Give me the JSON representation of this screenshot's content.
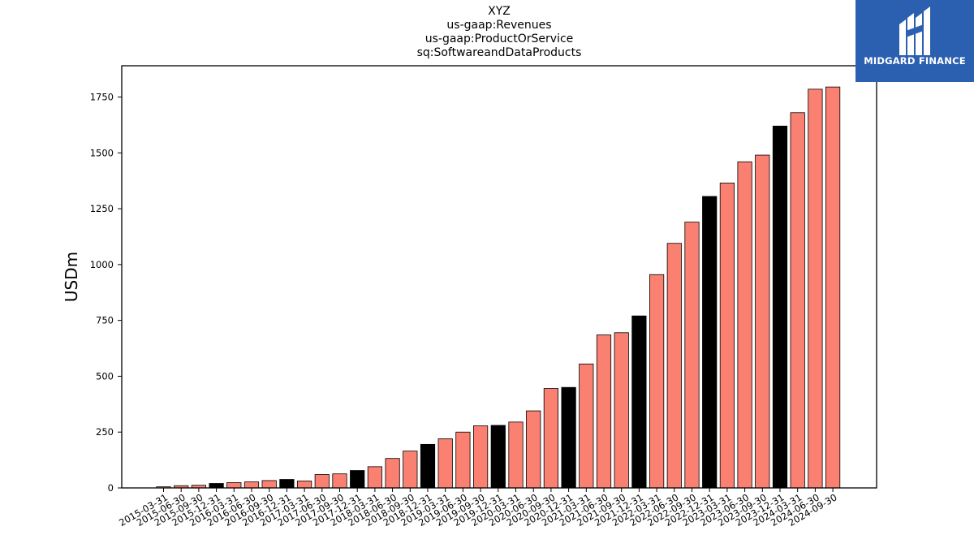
{
  "brand": {
    "logo_text": "MIDGARD FINANCE",
    "logo_bg": "#2b5fb0",
    "logo_fg": "#ffffff"
  },
  "chart_data": {
    "type": "bar",
    "title_lines": [
      "XYZ",
      "us-gaap:Revenues",
      "us-gaap:ProductOrService",
      "sq:SoftwareandDataProducts"
    ],
    "xlabel": "",
    "ylabel": "USDm",
    "ylim": [
      0,
      1890
    ],
    "yticks": [
      0,
      250,
      500,
      750,
      1000,
      1250,
      1500,
      1750
    ],
    "colors": {
      "quarter": "#fa8072",
      "year_end": "#000000",
      "edge": "#000000"
    },
    "categories": [
      "2015-03-31",
      "2015-06-30",
      "2015-09-30",
      "2015-12-31",
      "2016-03-31",
      "2016-06-30",
      "2016-09-30",
      "2016-12-31",
      "2017-03-31",
      "2017-06-30",
      "2017-09-30",
      "2017-12-31",
      "2018-03-31",
      "2018-06-30",
      "2018-09-30",
      "2018-12-31",
      "2019-03-31",
      "2019-06-30",
      "2019-09-30",
      "2019-12-31",
      "2020-03-31",
      "2020-06-30",
      "2020-09-30",
      "2020-12-31",
      "2021-03-31",
      "2021-06-30",
      "2021-09-30",
      "2021-12-31",
      "2022-03-31",
      "2022-06-30",
      "2022-09-30",
      "2022-12-31",
      "2023-03-31",
      "2023-06-30",
      "2023-09-30",
      "2023-12-31",
      "2024-03-31",
      "2024-06-30",
      "2024-09-30"
    ],
    "values": [
      5,
      10,
      12,
      20,
      24,
      27,
      33,
      38,
      31,
      60,
      63,
      78,
      95,
      132,
      165,
      195,
      220,
      250,
      278,
      280,
      295,
      345,
      445,
      450,
      555,
      685,
      695,
      770,
      955,
      1095,
      1190,
      1305,
      1365,
      1460,
      1490,
      1620,
      1680,
      1785,
      1795
    ],
    "highlight": [
      false,
      false,
      false,
      true,
      false,
      false,
      false,
      true,
      false,
      false,
      false,
      true,
      false,
      false,
      false,
      true,
      false,
      false,
      false,
      true,
      false,
      false,
      false,
      true,
      false,
      false,
      false,
      true,
      false,
      false,
      false,
      true,
      false,
      false,
      false,
      true,
      false,
      false,
      false
    ]
  }
}
